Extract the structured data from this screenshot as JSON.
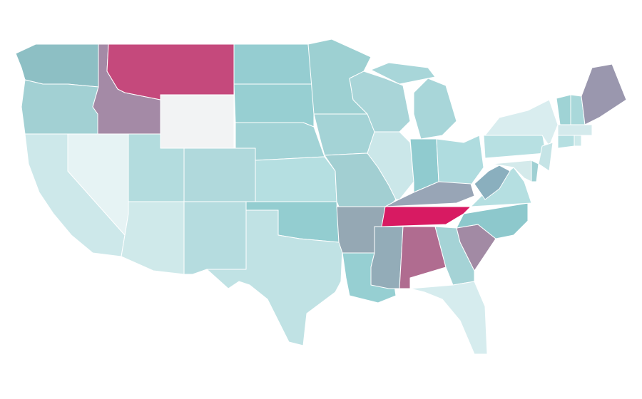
{
  "map": {
    "background": "#ffffff",
    "fills": [
      "#8dbfc4",
      "#a2d0d3",
      "#cde8ea",
      "#e6f3f4",
      "#a48aa6",
      "#c5497c",
      "#f2f3f4",
      "#b3dcde",
      "#cfe9ea",
      "#b0d9dc",
      "#b5dcdf",
      "#95cdd1",
      "#97cfd2",
      "#a2d3d6",
      "#b5dfe1",
      "#93cdd0",
      "#c0e2e4",
      "#9dd0d2",
      "#a4d3d6",
      "#a2cfd2",
      "#95a8b4",
      "#96cfd2",
      "#a9d5d8",
      "#cbe7e9",
      "#a8d6d9",
      "#a8d6d9",
      "#90cbcf",
      "#afdcdf",
      "#98a5b6",
      "#d81a62",
      "#93acb8",
      "#b06c90",
      "#a5d3d6",
      "#d6ecee",
      "#a28aa4",
      "#8dc8cc",
      "#b5dfe1",
      "#8aafbe",
      "#b7e0e2",
      "#d9edef",
      "#c5e4e6",
      "#9fd0d3",
      "#d4eaeb",
      "#9fd3d5",
      "#a9d8da",
      "#9a97ae",
      "#d4eaec",
      "#b5dfe1",
      "#cde9ea"
    ]
  }
}
